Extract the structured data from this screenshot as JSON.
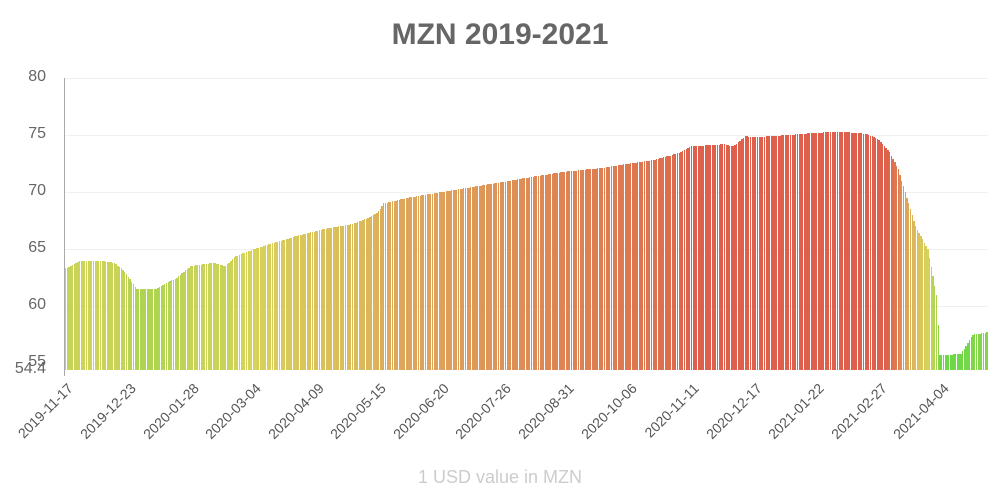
{
  "chart_data": {
    "type": "bar",
    "title": "MZN 2019-2021",
    "xlabel": "1 USD value in MZN",
    "ylabel": "",
    "ylim": [
      54.4,
      80
    ],
    "yticks": [
      "80",
      "75",
      "70",
      "65",
      "60",
      "55",
      "54.4"
    ],
    "xticks": [
      "2019-11-17",
      "2019-12-23",
      "2020-01-28",
      "2020-03-04",
      "2020-04-09",
      "2020-05-15",
      "2020-06-20",
      "2020-07-26",
      "2020-08-31",
      "2020-10-06",
      "2020-11-11",
      "2020-12-17",
      "2021-01-22",
      "2021-02-27",
      "2021-04-04"
    ],
    "grid": true,
    "legend": "none",
    "color_scale": {
      "low": "#44dd44",
      "mid": "#dddd55",
      "high": "#dd4433"
    },
    "x": [
      "2019-11-17",
      "2019-11-25",
      "2019-12-05",
      "2019-12-15",
      "2019-12-20",
      "2019-12-28",
      "2020-01-08",
      "2020-01-20",
      "2020-01-28",
      "2020-02-10",
      "2020-02-17",
      "2020-02-22",
      "2020-03-04",
      "2020-03-15",
      "2020-03-30",
      "2020-04-15",
      "2020-04-30",
      "2020-05-10",
      "2020-05-15",
      "2020-05-18",
      "2020-06-01",
      "2020-06-20",
      "2020-07-10",
      "2020-07-26",
      "2020-08-10",
      "2020-08-31",
      "2020-09-20",
      "2020-10-06",
      "2020-10-20",
      "2020-10-30",
      "2020-11-05",
      "2020-11-11",
      "2020-11-30",
      "2020-12-05",
      "2020-12-12",
      "2020-12-17",
      "2021-01-05",
      "2021-01-22",
      "2021-02-05",
      "2021-02-20",
      "2021-02-27",
      "2021-03-05",
      "2021-03-10",
      "2021-03-14",
      "2021-03-20",
      "2021-03-27",
      "2021-04-01",
      "2021-04-03",
      "2021-04-15",
      "2021-04-22",
      "2021-04-30"
    ],
    "values": [
      63.3,
      64.0,
      64.0,
      63.8,
      63.2,
      61.5,
      61.5,
      62.5,
      63.5,
      63.8,
      63.5,
      64.3,
      65.0,
      65.5,
      66.2,
      66.8,
      67.2,
      67.8,
      68.3,
      69.0,
      69.5,
      70.0,
      70.5,
      70.9,
      71.3,
      71.8,
      72.1,
      72.5,
      72.8,
      73.2,
      73.5,
      74.0,
      74.2,
      74.0,
      74.9,
      74.8,
      75.0,
      75.2,
      75.3,
      75.1,
      74.6,
      73.5,
      72.0,
      70.0,
      67.0,
      65.0,
      61.0,
      55.7,
      55.8,
      57.5,
      57.7
    ]
  }
}
